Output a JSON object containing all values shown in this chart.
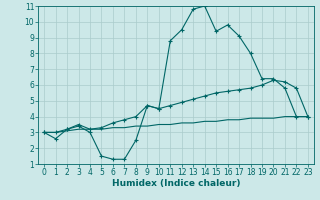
{
  "xlabel": "Humidex (Indice chaleur)",
  "bg_color": "#cce8e8",
  "grid_color": "#aacccc",
  "line_color": "#006666",
  "xlim": [
    -0.5,
    23.5
  ],
  "ylim": [
    1,
    11
  ],
  "xticks": [
    0,
    1,
    2,
    3,
    4,
    5,
    6,
    7,
    8,
    9,
    10,
    11,
    12,
    13,
    14,
    15,
    16,
    17,
    18,
    19,
    20,
    21,
    22,
    23
  ],
  "yticks": [
    1,
    2,
    3,
    4,
    5,
    6,
    7,
    8,
    9,
    10,
    11
  ],
  "line1_x": [
    0,
    1,
    2,
    3,
    4,
    5,
    6,
    7,
    8,
    9,
    10,
    11,
    12,
    13,
    14,
    15,
    16,
    17,
    18,
    19,
    20,
    21,
    22,
    23
  ],
  "line1_y": [
    3.0,
    2.6,
    3.2,
    3.4,
    3.0,
    1.5,
    1.3,
    1.3,
    2.5,
    4.7,
    4.5,
    8.8,
    9.5,
    10.8,
    11.0,
    9.4,
    9.8,
    9.1,
    8.0,
    6.4,
    6.4,
    5.8,
    4.0,
    4.0
  ],
  "line2_x": [
    0,
    1,
    2,
    3,
    4,
    5,
    6,
    7,
    8,
    9,
    10,
    11,
    12,
    13,
    14,
    15,
    16,
    17,
    18,
    19,
    20,
    21,
    22,
    23
  ],
  "line2_y": [
    3.0,
    3.0,
    3.2,
    3.5,
    3.2,
    3.3,
    3.6,
    3.8,
    4.0,
    4.7,
    4.5,
    4.7,
    4.9,
    5.1,
    5.3,
    5.5,
    5.6,
    5.7,
    5.8,
    6.0,
    6.3,
    6.2,
    5.8,
    4.0
  ],
  "line3_x": [
    0,
    1,
    2,
    3,
    4,
    5,
    6,
    7,
    8,
    9,
    10,
    11,
    12,
    13,
    14,
    15,
    16,
    17,
    18,
    19,
    20,
    21,
    22,
    23
  ],
  "line3_y": [
    3.0,
    3.0,
    3.1,
    3.2,
    3.2,
    3.2,
    3.3,
    3.3,
    3.4,
    3.4,
    3.5,
    3.5,
    3.6,
    3.6,
    3.7,
    3.7,
    3.8,
    3.8,
    3.9,
    3.9,
    3.9,
    4.0,
    4.0,
    4.0
  ],
  "tick_fontsize": 5.5,
  "xlabel_fontsize": 6.5
}
